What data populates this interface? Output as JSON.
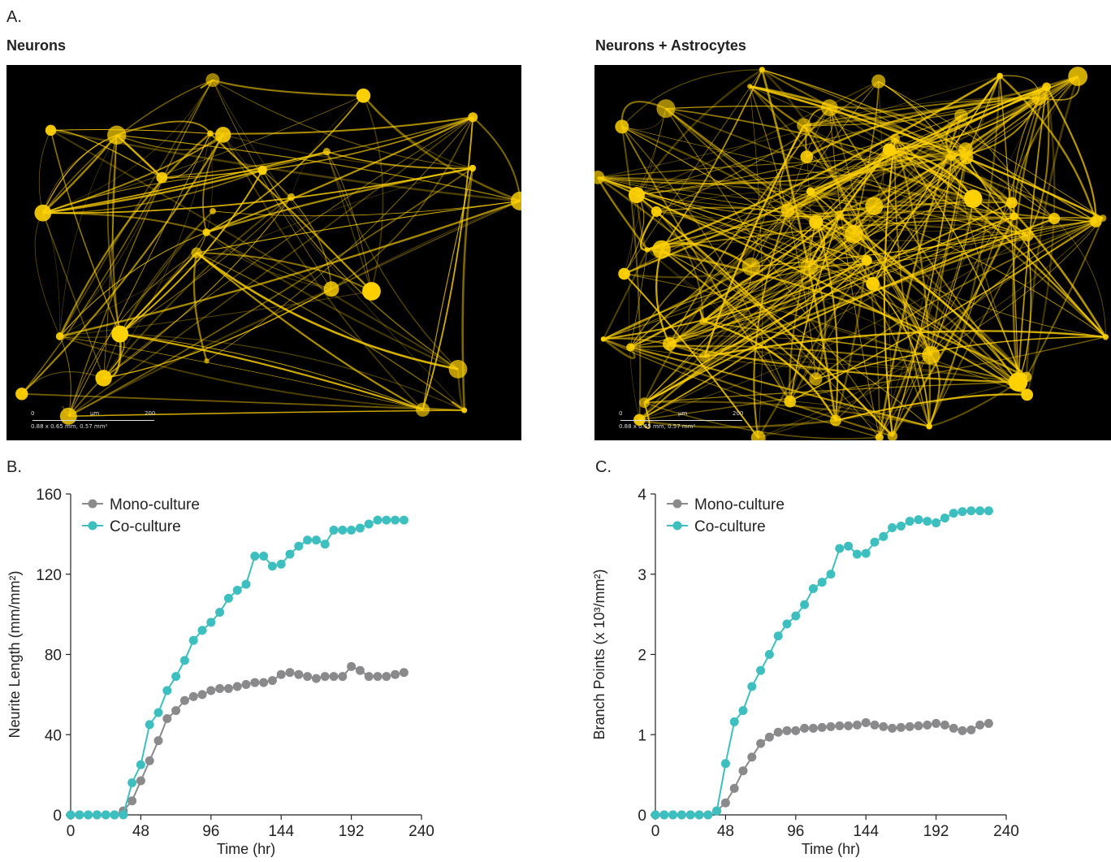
{
  "panels": {
    "a_label": "A.",
    "b_label": "B.",
    "c_label": "C."
  },
  "images": [
    {
      "title": "Neurons",
      "scale": {
        "zero": "0",
        "unit": "µm",
        "max": "200",
        "area": "0.88 x 0.65 mm, 0.57 mm²"
      }
    },
    {
      "title": "Neurons + Astrocytes",
      "scale": {
        "zero": "0",
        "unit": "µm",
        "max": "200",
        "area": "0.88 x 0.65 mm, 0.57 mm²"
      }
    }
  ],
  "colors": {
    "mono": "#8a8a8c",
    "co": "#3dbfbf",
    "stain": "#ffd200"
  },
  "chart_data": [
    {
      "type": "line",
      "xlabel": "Time (hr)",
      "ylabel": "Neurite Length (mm/mm²)",
      "xlim": [
        0,
        240
      ],
      "ylim": [
        0,
        160
      ],
      "xticks": [
        0,
        48,
        96,
        144,
        192,
        240
      ],
      "yticks": [
        0,
        40,
        80,
        120,
        160
      ],
      "legend": "top-left",
      "x": [
        0,
        6,
        12,
        18,
        24,
        30,
        36,
        42,
        48,
        54,
        60,
        66,
        72,
        78,
        84,
        90,
        96,
        102,
        108,
        114,
        120,
        126,
        132,
        138,
        144,
        150,
        156,
        162,
        168,
        174,
        180,
        186,
        192,
        198,
        204,
        210,
        216,
        222,
        228
      ],
      "series": [
        {
          "name": "Mono-culture",
          "values": [
            0,
            0,
            0,
            0,
            0,
            0,
            2,
            7,
            17,
            27,
            37,
            48,
            52,
            57,
            59,
            60,
            62,
            63,
            63,
            64,
            65,
            66,
            66,
            67,
            70,
            71,
            70,
            69,
            68,
            69,
            69,
            69,
            74,
            72,
            69,
            69,
            69,
            70,
            71
          ]
        },
        {
          "name": "Co-culture",
          "values": [
            0,
            0,
            0,
            0,
            0,
            0,
            0,
            16,
            25,
            45,
            51,
            62,
            69,
            77,
            87,
            92,
            96,
            101,
            108,
            112,
            115,
            129,
            129,
            124,
            125,
            130,
            134,
            137,
            137,
            135,
            142,
            142,
            142,
            143,
            145,
            147,
            147,
            147,
            147
          ]
        }
      ]
    },
    {
      "type": "line",
      "xlabel": "Time (hr)",
      "ylabel": "Branch Points (x 10³/mm²)",
      "xlim": [
        0,
        240
      ],
      "ylim": [
        0,
        4
      ],
      "xticks": [
        0,
        48,
        96,
        144,
        192,
        240
      ],
      "yticks": [
        0,
        1,
        2,
        3,
        4
      ],
      "legend": "top-left",
      "x": [
        0,
        6,
        12,
        18,
        24,
        30,
        36,
        42,
        48,
        54,
        60,
        66,
        72,
        78,
        84,
        90,
        96,
        102,
        108,
        114,
        120,
        126,
        132,
        138,
        144,
        150,
        156,
        162,
        168,
        174,
        180,
        186,
        192,
        198,
        204,
        210,
        216,
        222,
        228
      ],
      "series": [
        {
          "name": "Mono-culture",
          "values": [
            0,
            0,
            0,
            0,
            0,
            0,
            0,
            0.05,
            0.15,
            0.33,
            0.55,
            0.72,
            0.89,
            0.97,
            1.03,
            1.05,
            1.05,
            1.08,
            1.08,
            1.09,
            1.1,
            1.11,
            1.11,
            1.12,
            1.15,
            1.12,
            1.1,
            1.08,
            1.09,
            1.1,
            1.11,
            1.12,
            1.14,
            1.12,
            1.08,
            1.05,
            1.06,
            1.12,
            1.14
          ]
        },
        {
          "name": "Co-culture",
          "values": [
            0,
            0,
            0,
            0,
            0,
            0,
            0,
            0.05,
            0.64,
            1.16,
            1.3,
            1.6,
            1.8,
            2.0,
            2.23,
            2.38,
            2.48,
            2.62,
            2.82,
            2.9,
            3.0,
            3.32,
            3.35,
            3.25,
            3.26,
            3.4,
            3.47,
            3.58,
            3.6,
            3.66,
            3.68,
            3.66,
            3.64,
            3.7,
            3.76,
            3.78,
            3.79,
            3.79,
            3.79
          ]
        }
      ]
    }
  ]
}
